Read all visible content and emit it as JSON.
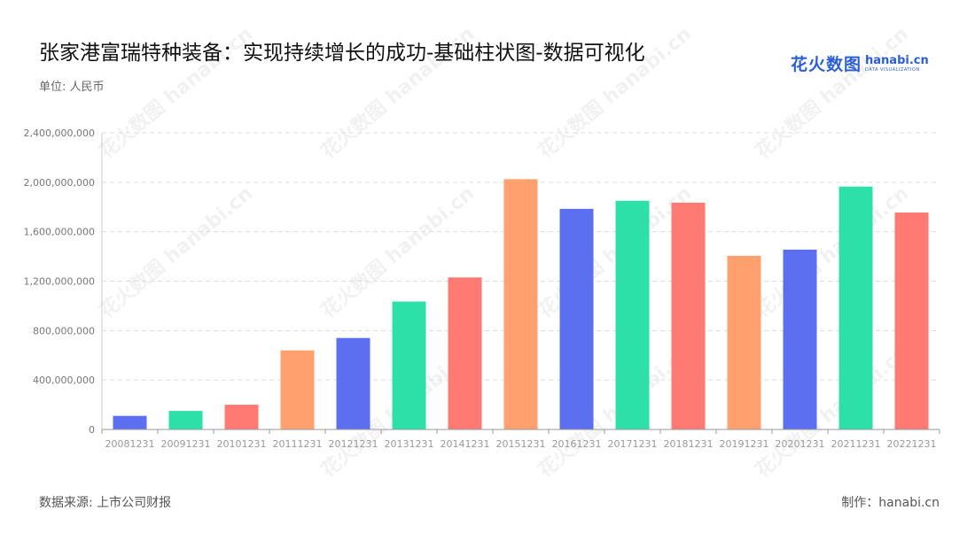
{
  "header": {
    "title": "张家港富瑞特种装备：实现持续增长的成功-基础柱状图-数据可视化",
    "unit": "单位: 人民币"
  },
  "logo": {
    "cn": "花火数图",
    "en": "hanabi.cn",
    "sub": "DATA VISUALIZATION"
  },
  "footer": {
    "source": "数据来源: 上市公司财报",
    "credit": "制作：hanabi.cn"
  },
  "watermark": "花火数图 hanabi.cn",
  "chart_data": {
    "type": "bar",
    "categories": [
      "20081231",
      "20091231",
      "20101231",
      "20111231",
      "20121231",
      "20131231",
      "20141231",
      "20151231",
      "20161231",
      "20171231",
      "20181231",
      "20191231",
      "20201231",
      "20211231",
      "20221231"
    ],
    "values": [
      110000000,
      150000000,
      200000000,
      640000000,
      740000000,
      1035000000,
      1230000000,
      2025000000,
      1785000000,
      1850000000,
      1835000000,
      1405000000,
      1455000000,
      1965000000,
      1755000000
    ],
    "colors": [
      "#5b6ff0",
      "#2de0a8",
      "#ff7a72",
      "#ffa06e",
      "#5b6ff0",
      "#2de0a8",
      "#ff7a72",
      "#ffa06e",
      "#5b6ff0",
      "#2de0a8",
      "#ff7a72",
      "#ffa06e",
      "#5b6ff0",
      "#2de0a8",
      "#ff7a72"
    ],
    "yticks": [
      "0",
      "400,000,000",
      "800,000,000",
      "1,200,000,000",
      "1,600,000,000",
      "2,000,000,000",
      "2,400,000,000"
    ],
    "ylim": [
      0,
      2400000000
    ],
    "grid": true,
    "legend": "none"
  }
}
